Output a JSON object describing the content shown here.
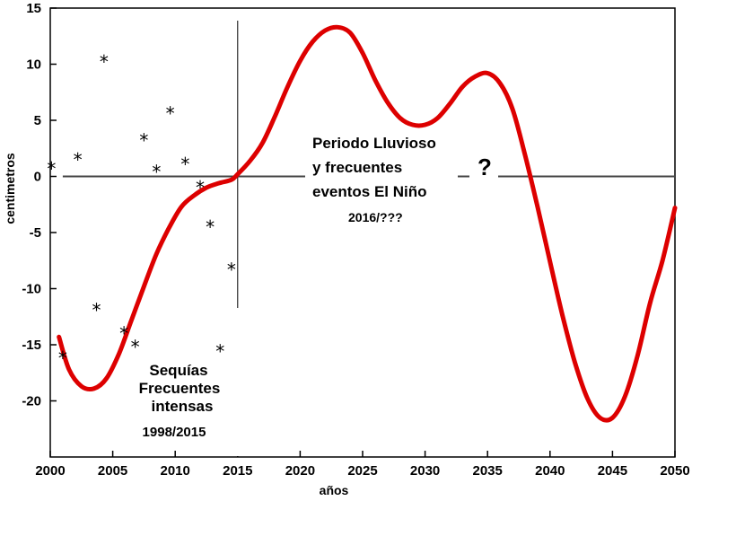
{
  "chart_data": {
    "type": "line",
    "xlabel": "años",
    "ylabel": "centimetros",
    "xlim": [
      2000,
      2050
    ],
    "ylim": [
      -25,
      15
    ],
    "xticks": [
      2000,
      2005,
      2010,
      2015,
      2020,
      2025,
      2030,
      2035,
      2040,
      2045,
      2050
    ],
    "yticks": [
      15,
      10,
      5,
      0,
      -5,
      -10,
      -15,
      -20
    ],
    "grid": false,
    "series": [
      {
        "color": "#dd0000",
        "x": [
          2000.7,
          2001.5,
          2002.5,
          2003.5,
          2004.5,
          2005.5,
          2006.5,
          2007.5,
          2008.5,
          2009.5,
          2010.5,
          2011.5,
          2012.5,
          2013.5,
          2014.5,
          2015,
          2016,
          2017,
          2018,
          2019,
          2020,
          2021,
          2022,
          2023,
          2024,
          2025,
          2026,
          2027,
          2028,
          2029,
          2030,
          2031,
          2032,
          2033,
          2034,
          2035,
          2036,
          2037,
          2038,
          2039,
          2040,
          2041,
          2042,
          2043,
          2044,
          2045,
          2046,
          2047,
          2048,
          2049,
          2050
        ],
        "y": [
          -14.3,
          -17.2,
          -18.7,
          -18.9,
          -18.0,
          -15.8,
          -12.8,
          -9.8,
          -6.9,
          -4.6,
          -2.7,
          -1.7,
          -1.0,
          -0.6,
          -0.3,
          0.2,
          1.4,
          3.0,
          5.4,
          8.0,
          10.3,
          12.0,
          13.0,
          13.3,
          12.8,
          11.0,
          8.6,
          6.6,
          5.2,
          4.6,
          4.6,
          5.2,
          6.5,
          8.0,
          8.9,
          9.2,
          8.3,
          6.0,
          1.9,
          -2.7,
          -7.6,
          -12.4,
          -16.6,
          -19.8,
          -21.5,
          -21.5,
          -19.6,
          -16.0,
          -11.3,
          -7.5,
          -2.8
        ]
      }
    ],
    "markers": {
      "symbol": "*",
      "points": [
        {
          "x": 2000.1,
          "y": 1.1
        },
        {
          "x": 2001.0,
          "y": -15.8
        },
        {
          "x": 2002.2,
          "y": 1.9
        },
        {
          "x": 2003.7,
          "y": -11.5
        },
        {
          "x": 2004.3,
          "y": 10.6
        },
        {
          "x": 2005.9,
          "y": -13.6
        },
        {
          "x": 2006.8,
          "y": -14.8
        },
        {
          "x": 2007.5,
          "y": 3.6
        },
        {
          "x": 2008.5,
          "y": 0.8
        },
        {
          "x": 2009.6,
          "y": 6.0
        },
        {
          "x": 2010.8,
          "y": 1.5
        },
        {
          "x": 2012.0,
          "y": -0.6
        },
        {
          "x": 2012.8,
          "y": -4.1
        },
        {
          "x": 2013.6,
          "y": -15.2
        },
        {
          "x": 2014.5,
          "y": -7.9
        }
      ]
    },
    "reference_lines": {
      "horizontal_zero": true,
      "vertical_x": 2015
    },
    "annotations": {
      "wet_period": {
        "lines": [
          "Periodo Lluvioso",
          "y frecuentes",
          "eventos El Niño"
        ],
        "years": "2016/???"
      },
      "question": "?",
      "drought": {
        "lines": [
          "Sequías",
          "Frecuentes",
          "intensas"
        ],
        "years": "1998/2015"
      }
    }
  }
}
